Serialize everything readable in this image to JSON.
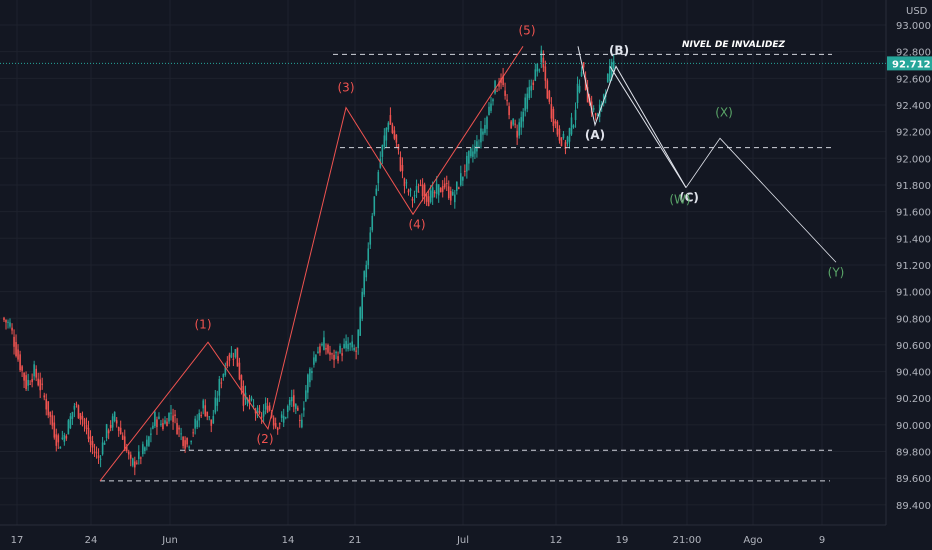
{
  "currency": "USD",
  "price_tag": "92.712",
  "annotation": "NIVEL DE INVALIDEZ",
  "colors": {
    "bg": "#131722",
    "up": "#26a69a",
    "down": "#ef5350",
    "grid": "#1e222d",
    "axis_text": "#b2b5be",
    "dash": "#d1d4dc",
    "wave_red": "#ef5350",
    "wave_white": "#e0e3eb",
    "wave_green": "#5aa568",
    "price_line": "#26a69a"
  },
  "chart_data": {
    "type": "candlestick",
    "ylim": [
      89.3,
      93.1
    ],
    "y_ticks": [
      "93.000",
      "92.800",
      "92.600",
      "92.400",
      "92.200",
      "92.000",
      "91.800",
      "91.600",
      "91.400",
      "91.200",
      "91.000",
      "90.800",
      "90.600",
      "90.400",
      "90.200",
      "90.000",
      "89.800",
      "89.600",
      "89.400"
    ],
    "x_ticks": [
      "17",
      "24",
      "Jun",
      "14",
      "21",
      "Jul",
      "12",
      "19",
      "21:00",
      "Ago",
      "9"
    ],
    "last_price": 92.712,
    "levels": [
      92.78,
      92.08,
      89.81,
      89.58
    ],
    "candles_close_points": [
      [
        0,
        90.75
      ],
      [
        1,
        90.5
      ],
      [
        2,
        90.3
      ],
      [
        3,
        90.4
      ],
      [
        4,
        90.25
      ],
      [
        5,
        90.05
      ],
      [
        6,
        89.85
      ],
      [
        7,
        89.95
      ],
      [
        8,
        90.15
      ],
      [
        9,
        90.05
      ],
      [
        10,
        89.85
      ],
      [
        11,
        89.75
      ],
      [
        12,
        89.95
      ],
      [
        13,
        90.05
      ],
      [
        14,
        89.9
      ],
      [
        15,
        89.7
      ],
      [
        16,
        89.75
      ],
      [
        17,
        89.85
      ],
      [
        18,
        90.05
      ],
      [
        19,
        90.0
      ],
      [
        20,
        90.1
      ],
      [
        21,
        89.95
      ],
      [
        22,
        89.85
      ],
      [
        23,
        90.0
      ],
      [
        24,
        90.15
      ],
      [
        25,
        90.0
      ],
      [
        26,
        90.3
      ],
      [
        27,
        90.5
      ],
      [
        28,
        90.55
      ],
      [
        29,
        90.2
      ],
      [
        30,
        90.15
      ],
      [
        31,
        90.05
      ],
      [
        32,
        90.15
      ],
      [
        33,
        90.0
      ],
      [
        34,
        90.05
      ],
      [
        35,
        90.2
      ],
      [
        36,
        90.0
      ],
      [
        37,
        90.35
      ],
      [
        38,
        90.55
      ],
      [
        39,
        90.6
      ],
      [
        40,
        90.5
      ],
      [
        41,
        90.55
      ],
      [
        42,
        90.6
      ],
      [
        43,
        90.55
      ],
      [
        44,
        91.1
      ],
      [
        45,
        91.6
      ],
      [
        46,
        92.0
      ],
      [
        47,
        92.3
      ],
      [
        48,
        92.1
      ],
      [
        49,
        91.8
      ],
      [
        50,
        91.7
      ],
      [
        51,
        91.8
      ],
      [
        52,
        91.7
      ],
      [
        53,
        91.75
      ],
      [
        54,
        91.8
      ],
      [
        55,
        91.7
      ],
      [
        56,
        91.85
      ],
      [
        57,
        92.0
      ],
      [
        58,
        92.1
      ],
      [
        59,
        92.25
      ],
      [
        60,
        92.5
      ],
      [
        61,
        92.6
      ],
      [
        62,
        92.3
      ],
      [
        63,
        92.2
      ],
      [
        64,
        92.4
      ],
      [
        65,
        92.6
      ],
      [
        66,
        92.75
      ],
      [
        67,
        92.4
      ],
      [
        68,
        92.2
      ],
      [
        69,
        92.1
      ],
      [
        70,
        92.3
      ],
      [
        71,
        92.7
      ],
      [
        72,
        92.4
      ],
      [
        73,
        92.3
      ],
      [
        74,
        92.55
      ],
      [
        75,
        92.71
      ]
    ],
    "waves": [
      {
        "label": "(1)",
        "color": "red",
        "price": 90.62
      },
      {
        "label": "(2)",
        "color": "red",
        "price": 89.97
      },
      {
        "label": "(3)",
        "color": "red",
        "price": 92.38
      },
      {
        "label": "(4)",
        "color": "red",
        "price": 91.58
      },
      {
        "label": "(5)",
        "color": "red",
        "price": 92.84
      },
      {
        "label": "(A)",
        "color": "white",
        "price": 92.25
      },
      {
        "label": "(B)",
        "color": "white",
        "price": 92.69
      },
      {
        "label": "(C)",
        "color": "white",
        "price": 91.78
      },
      {
        "label": "(W)",
        "color": "green",
        "price": 91.78
      },
      {
        "label": "(X)",
        "color": "green",
        "price": 92.15
      },
      {
        "label": "(Y)",
        "color": "green",
        "price": 91.22
      }
    ]
  }
}
